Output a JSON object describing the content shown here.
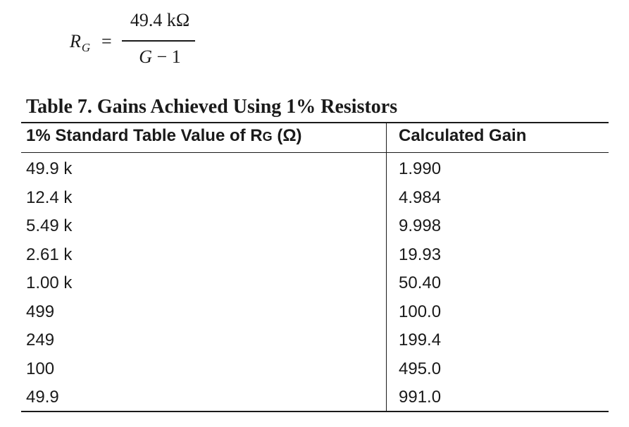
{
  "equation": {
    "lhs_var": "R",
    "lhs_sub": "G",
    "equals": "=",
    "numerator": "49.4 kΩ",
    "denominator_var": "G",
    "denominator_rest": " − 1"
  },
  "table": {
    "caption": "Table 7. Gains Achieved Using 1% Resistors",
    "headers": {
      "col1_prefix": "1% Standard Table Value of R",
      "col1_sub": "G",
      "col1_suffix": " (Ω)",
      "col2": "Calculated Gain"
    },
    "rows": [
      {
        "resistor": "49.9 k",
        "gain": "1.990"
      },
      {
        "resistor": "12.4 k",
        "gain": "4.984"
      },
      {
        "resistor": "5.49 k",
        "gain": "9.998"
      },
      {
        "resistor": "2.61 k",
        "gain": "19.93"
      },
      {
        "resistor": "1.00 k",
        "gain": "50.40"
      },
      {
        "resistor": "499",
        "gain": "100.0"
      },
      {
        "resistor": "249",
        "gain": "199.4"
      },
      {
        "resistor": "100",
        "gain": "495.0"
      },
      {
        "resistor": "49.9",
        "gain": "991.0"
      }
    ]
  }
}
